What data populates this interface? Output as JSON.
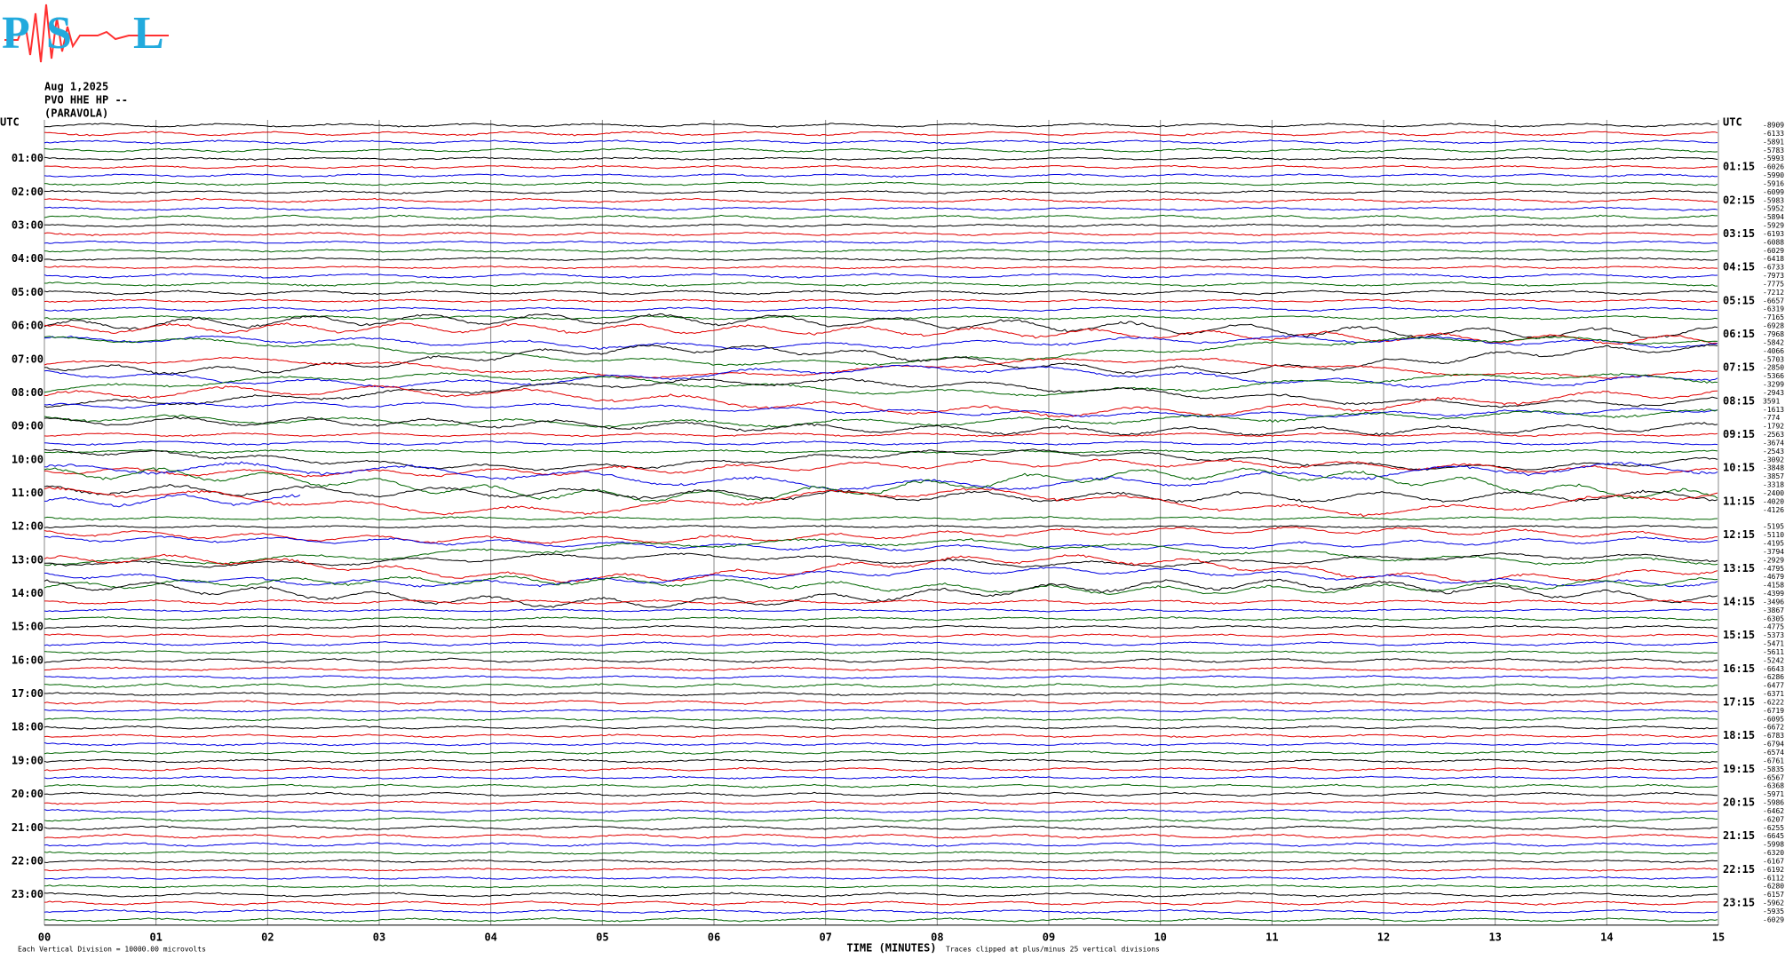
{
  "header": {
    "logo_letters": [
      "P",
      "S",
      "L"
    ],
    "date": "Aug 1,2025",
    "station": "PVO HHE HP --",
    "location": "(PARAVOLA)"
  },
  "trace_colors": [
    "#000000",
    "#e00000",
    "#0000e0",
    "#006400"
  ],
  "left_labels": [
    "UTC",
    "01:00",
    "02:00",
    "03:00",
    "04:00",
    "05:00",
    "06:00",
    "07:00",
    "08:00",
    "09:00",
    "10:00",
    "11:00",
    "12:00",
    "13:00",
    "14:00",
    "15:00",
    "16:00",
    "17:00",
    "18:00",
    "19:00",
    "20:00",
    "21:00",
    "22:00",
    "23:00"
  ],
  "right_labels": [
    "UTC",
    "01:15",
    "02:15",
    "03:15",
    "04:15",
    "05:15",
    "06:15",
    "07:15",
    "08:15",
    "09:15",
    "10:15",
    "11:15",
    "12:15",
    "13:15",
    "14:15",
    "15:15",
    "16:15",
    "17:15",
    "18:15",
    "19:15",
    "20:15",
    "21:15",
    "22:15",
    "23:15"
  ],
  "trace_offsets": [
    "-8909",
    "-6133",
    "-5891",
    "-5783",
    "-5993",
    "-6026",
    "-5990",
    "-5916",
    "-6099",
    "-5983",
    "-5952",
    "-5894",
    "-5929",
    "-6193",
    "-6088",
    "-6029",
    "-6418",
    "-6733",
    "-7973",
    "-7775",
    "-7212",
    "-6657",
    "-6319",
    "-7165",
    "-6928",
    "-7968",
    "-5842",
    "-4066",
    "-5703",
    "-2850",
    "-5366",
    "-3299",
    "-2943",
    "3591",
    "-1613",
    "-774",
    "-1792",
    "-2563",
    "-3674",
    "-2543",
    "-3092",
    "-3848",
    "-3857",
    "-3318",
    "-2400",
    "-4020",
    "-4126",
    null,
    "-5195",
    "-5110",
    "-4195",
    "-3794",
    "-2929",
    "-4795",
    "-4679",
    "-4158",
    "-4399",
    "-3496",
    "-3867",
    "-6305",
    "-4775",
    "-5373",
    "-5471",
    "-5611",
    "-5242",
    "-6643",
    "-6286",
    "-6477",
    "-6371",
    "-6222",
    "-6719",
    "-6095",
    "-6672",
    "-6783",
    "-6794",
    "-6574",
    "-6761",
    "-5835",
    "-6567",
    "-6368",
    "-5971",
    "-5986",
    "-6462",
    "-6207",
    "-6255",
    "-6645",
    "-5998",
    "-6320",
    "-6167",
    "-6192",
    "-6112",
    "-6280",
    "-6157",
    "-5962",
    "-5935",
    "-6029"
  ],
  "x_axis": {
    "title": "TIME (MINUTES)",
    "ticks": [
      "00",
      "01",
      "02",
      "03",
      "04",
      "05",
      "06",
      "07",
      "08",
      "09",
      "10",
      "11",
      "12",
      "13",
      "14",
      "15"
    ]
  },
  "footer": {
    "scale_note": "Each Vertical Division = 10000.00 microvolts",
    "clip_note": "Traces clipped at plus/minus 25 vertical divisions"
  }
}
